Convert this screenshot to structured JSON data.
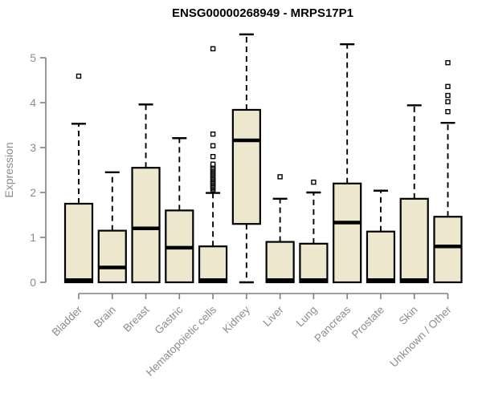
{
  "chart_data": {
    "type": "boxplot",
    "title": "ENSG00000268949 - MRPS17P1",
    "ylabel": "Expression",
    "xlabel": "",
    "ylim": [
      0,
      5.6
    ],
    "yticks": [
      0,
      1,
      2,
      3,
      4,
      5
    ],
    "grid": false,
    "legend": "none",
    "categories": [
      "Bladder",
      "Brain",
      "Breast",
      "Gastric",
      "Hematopoietic cells",
      "Kidney",
      "Liver",
      "Lung",
      "Pancreas",
      "Prostate",
      "Skin",
      "Unknown / Other"
    ],
    "boxes": [
      {
        "category": "Bladder",
        "whisker_low": 0,
        "q1": 0,
        "median": 0.05,
        "q3": 1.75,
        "whisker_high": 3.53,
        "outliers": [
          4.59
        ]
      },
      {
        "category": "Brain",
        "whisker_low": 0,
        "q1": 0,
        "median": 0.33,
        "q3": 1.15,
        "whisker_high": 2.45,
        "outliers": []
      },
      {
        "category": "Breast",
        "whisker_low": 0,
        "q1": 0,
        "median": 1.2,
        "q3": 2.55,
        "whisker_high": 3.96,
        "outliers": []
      },
      {
        "category": "Gastric",
        "whisker_low": 0,
        "q1": 0,
        "median": 0.77,
        "q3": 1.6,
        "whisker_high": 3.21,
        "outliers": []
      },
      {
        "category": "Hematopoietic cells",
        "whisker_low": 0,
        "q1": 0,
        "median": 0.05,
        "q3": 0.8,
        "whisker_high": 1.99,
        "outliers": [
          2.05,
          2.08,
          2.11,
          2.14,
          2.17,
          2.2,
          2.23,
          2.26,
          2.29,
          2.32,
          2.35,
          2.38,
          2.41,
          2.44,
          2.47,
          2.5,
          2.53,
          2.56,
          2.6,
          2.63,
          2.8,
          3.04,
          3.3,
          5.2
        ]
      },
      {
        "category": "Kidney",
        "whisker_low": 0,
        "q1": 1.3,
        "median": 3.16,
        "q3": 3.84,
        "whisker_high": 5.52,
        "outliers": []
      },
      {
        "category": "Liver",
        "whisker_low": 0,
        "q1": 0,
        "median": 0.05,
        "q3": 0.9,
        "whisker_high": 1.86,
        "outliers": [
          2.35
        ]
      },
      {
        "category": "Lung",
        "whisker_low": 0,
        "q1": 0,
        "median": 0.05,
        "q3": 0.86,
        "whisker_high": 2.0,
        "outliers": [
          2.23
        ]
      },
      {
        "category": "Pancreas",
        "whisker_low": 0,
        "q1": 0,
        "median": 1.33,
        "q3": 2.2,
        "whisker_high": 5.3,
        "outliers": []
      },
      {
        "category": "Prostate",
        "whisker_low": 0,
        "q1": 0,
        "median": 0.05,
        "q3": 1.13,
        "whisker_high": 2.04,
        "outliers": []
      },
      {
        "category": "Skin",
        "whisker_low": 0,
        "q1": 0,
        "median": 0.05,
        "q3": 1.86,
        "whisker_high": 3.94,
        "outliers": []
      },
      {
        "category": "Unknown / Other",
        "whisker_low": 0,
        "q1": 0,
        "median": 0.8,
        "q3": 1.46,
        "whisker_high": 3.55,
        "outliers": [
          3.8,
          4.02,
          4.16,
          4.36,
          4.89
        ]
      }
    ],
    "colors": {
      "box_fill": "#ede8cd",
      "box_stroke": "#000000",
      "median": "#000000",
      "whisker": "#000000",
      "outlier_stroke": "#000000",
      "outlier_fill": "#ffffff",
      "axis": "#808080",
      "axis_text": "#8c8c8c",
      "title_text": "#000000",
      "background": "#ffffff"
    }
  }
}
